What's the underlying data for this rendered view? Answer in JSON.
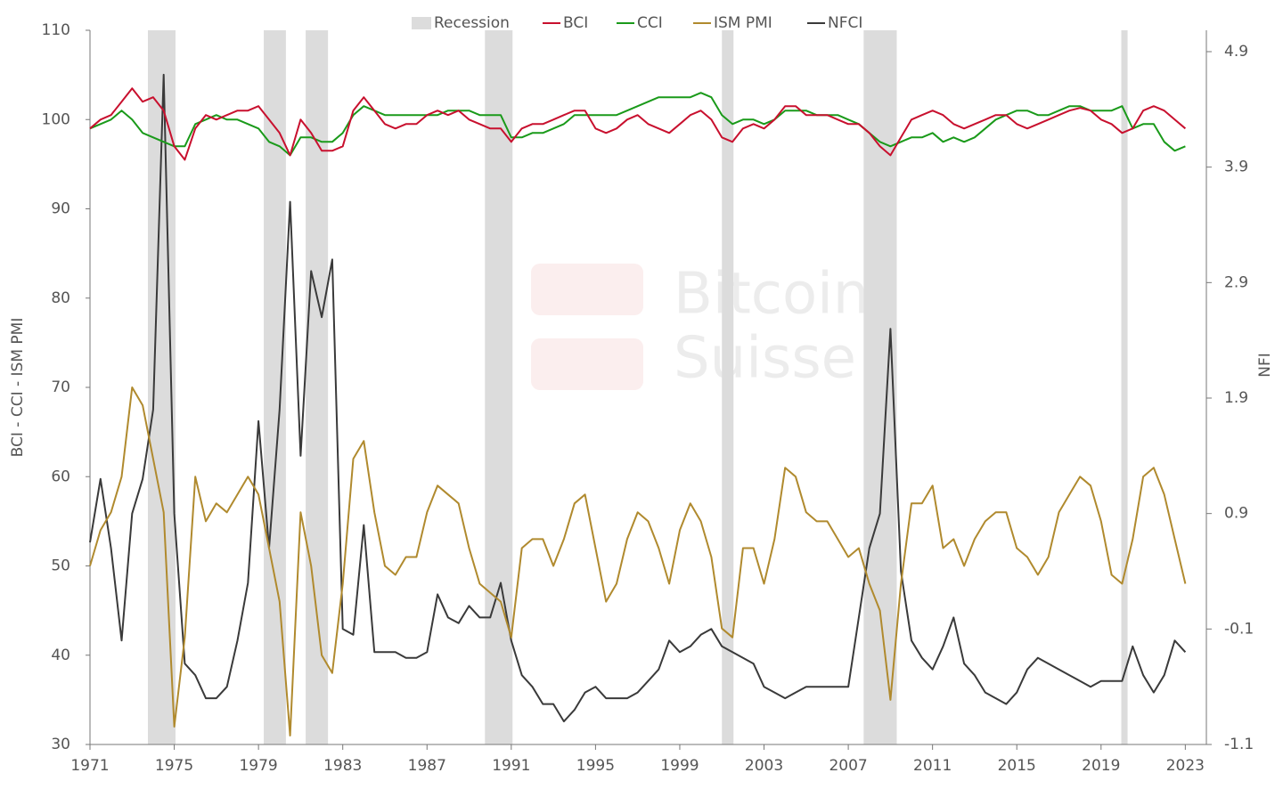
{
  "chart_data": {
    "type": "line",
    "ylabel": "BCI - CCI - ISM PMI",
    "y2label": "NFI",
    "watermark": [
      "Bitcoin",
      "Suisse"
    ],
    "xlim": [
      1971,
      2024
    ],
    "xticks": [
      1971,
      1975,
      1979,
      1983,
      1987,
      1991,
      1995,
      1999,
      2003,
      2007,
      2011,
      2015,
      2019,
      2023
    ],
    "ylim": [
      30,
      110
    ],
    "yticks": [
      30,
      40,
      50,
      60,
      70,
      80,
      90,
      100,
      110
    ],
    "y2lim": [
      -1.1,
      5.085
    ],
    "y2ticks": [
      -1.1,
      -0.1,
      0.9,
      1.9,
      2.9,
      3.9,
      4.9
    ],
    "recession": {
      "name": "Recession",
      "color": "#dcdcdc",
      "periods": [
        [
          1973.75,
          1975.06
        ],
        [
          1979.25,
          1980.3
        ],
        [
          1981.24,
          1982.3
        ],
        [
          1989.75,
          1991.06
        ],
        [
          2001.0,
          2001.55
        ],
        [
          2007.73,
          2009.3
        ],
        [
          2019.96,
          2020.26
        ]
      ]
    },
    "x": [
      1971,
      1971.5,
      1972,
      1972.5,
      1973,
      1973.5,
      1974,
      1974.5,
      1975,
      1975.5,
      1976,
      1976.5,
      1977,
      1977.5,
      1978,
      1978.5,
      1979,
      1979.5,
      1980,
      1980.5,
      1981,
      1981.5,
      1982,
      1982.5,
      1983,
      1983.5,
      1984,
      1984.5,
      1985,
      1985.5,
      1986,
      1986.5,
      1987,
      1987.5,
      1988,
      1988.5,
      1989,
      1989.5,
      1990,
      1990.5,
      1991,
      1991.5,
      1992,
      1992.5,
      1993,
      1993.5,
      1994,
      1994.5,
      1995,
      1995.5,
      1996,
      1996.5,
      1997,
      1997.5,
      1998,
      1998.5,
      1999,
      1999.5,
      2000,
      2000.5,
      2001,
      2001.5,
      2002,
      2002.5,
      2003,
      2003.5,
      2004,
      2004.5,
      2005,
      2005.5,
      2006,
      2006.5,
      2007,
      2007.5,
      2008,
      2008.5,
      2009,
      2009.5,
      2010,
      2010.5,
      2011,
      2011.5,
      2012,
      2012.5,
      2013,
      2013.5,
      2014,
      2014.5,
      2015,
      2015.5,
      2016,
      2016.5,
      2017,
      2017.5,
      2018,
      2018.5,
      2019,
      2019.5,
      2020,
      2020.5,
      2021,
      2021.5,
      2022,
      2022.5,
      2023
    ],
    "series": [
      {
        "name": "BCI",
        "color": "#c8102e",
        "values": [
          99,
          100,
          100.5,
          102,
          103.5,
          102,
          102.5,
          101,
          97,
          95.5,
          99,
          100.5,
          100,
          100.5,
          101,
          101,
          101.5,
          100,
          98.5,
          96,
          100,
          98.5,
          96.5,
          96.5,
          97,
          101,
          102.5,
          101,
          99.5,
          99,
          99.5,
          99.5,
          100.5,
          101,
          100.5,
          101,
          100,
          99.5,
          99,
          99,
          97.5,
          99,
          99.5,
          99.5,
          100,
          100.5,
          101,
          101,
          99,
          98.5,
          99,
          100,
          100.5,
          99.5,
          99,
          98.5,
          99.5,
          100.5,
          101,
          100,
          98,
          97.5,
          99,
          99.5,
          99,
          100,
          101.5,
          101.5,
          100.5,
          100.5,
          100.5,
          100,
          99.5,
          99.5,
          98.5,
          97,
          96,
          98,
          100,
          100.5,
          101,
          100.5,
          99.5,
          99,
          99.5,
          100,
          100.5,
          100.5,
          99.5,
          99,
          99.5,
          100,
          100.5,
          101,
          101.3,
          101,
          100,
          99.5,
          98.5,
          99,
          101,
          101.5,
          101,
          100,
          99
        ]
      },
      {
        "name": "CCI",
        "color": "#1a9a1a",
        "values": [
          99,
          99.5,
          100,
          101,
          100,
          98.5,
          98,
          97.5,
          97,
          97,
          99.5,
          100,
          100.5,
          100,
          100,
          99.5,
          99,
          97.5,
          97,
          96,
          98,
          98,
          97.5,
          97.5,
          98.5,
          100.5,
          101.5,
          101,
          100.5,
          100.5,
          100.5,
          100.5,
          100.5,
          100.5,
          101,
          101,
          101,
          100.5,
          100.5,
          100.5,
          98,
          98,
          98.5,
          98.5,
          99,
          99.5,
          100.5,
          100.5,
          100.5,
          100.5,
          100.5,
          101,
          101.5,
          102,
          102.5,
          102.5,
          102.5,
          102.5,
          103,
          102.5,
          100.5,
          99.5,
          100,
          100,
          99.5,
          100,
          101,
          101,
          101,
          100.5,
          100.5,
          100.5,
          100,
          99.5,
          98.5,
          97.5,
          97,
          97.5,
          98,
          98,
          98.5,
          97.5,
          98,
          97.5,
          98,
          99,
          100,
          100.5,
          101,
          101,
          100.5,
          100.5,
          101,
          101.5,
          101.5,
          101,
          101,
          101,
          101.5,
          99,
          99.5,
          99.5,
          97.5,
          96.5,
          97
        ]
      },
      {
        "name": "ISM PMI",
        "color": "#b08a2e",
        "values": [
          50,
          54,
          56,
          60,
          70,
          68,
          62,
          56,
          32,
          42,
          60,
          55,
          57,
          56,
          58,
          60,
          58,
          52,
          46,
          31,
          56,
          50,
          40,
          38,
          48,
          62,
          64,
          56,
          50,
          49,
          51,
          51,
          56,
          59,
          58,
          57,
          52,
          48,
          47,
          46,
          42,
          52,
          53,
          53,
          50,
          53,
          57,
          58,
          52,
          46,
          48,
          53,
          56,
          55,
          52,
          48,
          54,
          57,
          55,
          51,
          43,
          42,
          52,
          52,
          48,
          53,
          61,
          60,
          56,
          55,
          55,
          53,
          51,
          52,
          48,
          45,
          35,
          48,
          57,
          57,
          59,
          52,
          53,
          50,
          53,
          55,
          56,
          56,
          52,
          51,
          49,
          51,
          56,
          58,
          60,
          59,
          55,
          49,
          48,
          53,
          60,
          61,
          58,
          53,
          48
        ]
      },
      {
        "name": "NFCI",
        "color": "#3a3a3a",
        "axis": "y2",
        "values": [
          0.65,
          1.2,
          0.6,
          -0.2,
          0.9,
          1.2,
          1.8,
          4.7,
          0.9,
          -0.4,
          -0.5,
          -0.7,
          -0.7,
          -0.6,
          -0.2,
          0.3,
          1.7,
          0.6,
          1.8,
          3.6,
          1.4,
          3.0,
          2.6,
          3.1,
          -0.1,
          -0.15,
          0.8,
          -0.3,
          -0.3,
          -0.3,
          -0.35,
          -0.35,
          -0.3,
          0.2,
          0.0,
          -0.05,
          0.1,
          0.0,
          0.0,
          0.3,
          -0.2,
          -0.5,
          -0.6,
          -0.75,
          -0.75,
          -0.9,
          -0.8,
          -0.65,
          -0.6,
          -0.7,
          -0.7,
          -0.7,
          -0.65,
          -0.55,
          -0.45,
          -0.2,
          -0.3,
          -0.25,
          -0.15,
          -0.1,
          -0.25,
          -0.3,
          -0.35,
          -0.4,
          -0.6,
          -0.65,
          -0.7,
          -0.65,
          -0.6,
          -0.6,
          -0.6,
          -0.6,
          -0.6,
          0.0,
          0.6,
          0.9,
          2.5,
          0.4,
          -0.2,
          -0.35,
          -0.45,
          -0.25,
          0.0,
          -0.4,
          -0.5,
          -0.65,
          -0.7,
          -0.75,
          -0.65,
          -0.45,
          -0.35,
          -0.4,
          -0.45,
          -0.5,
          -0.55,
          -0.6,
          -0.55,
          -0.55,
          -0.55,
          -0.25,
          -0.5,
          -0.65,
          -0.5,
          -0.2,
          -0.3
        ]
      }
    ]
  }
}
